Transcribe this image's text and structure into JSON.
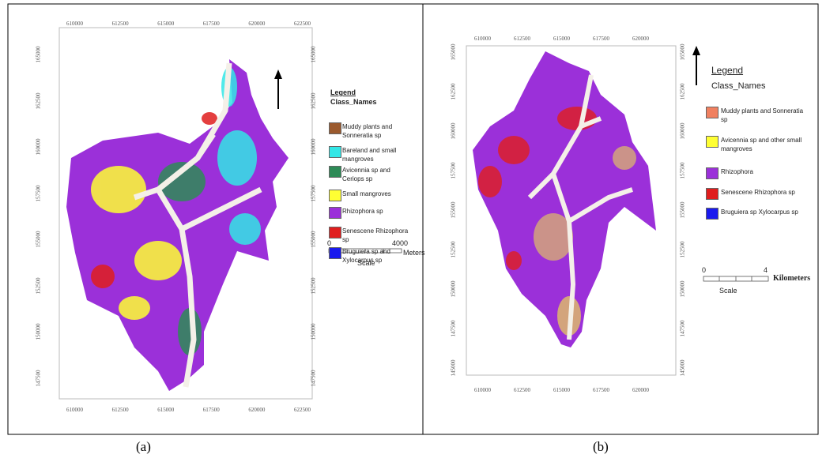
{
  "panels": [
    {
      "caption": "(a)",
      "legend_title": "Legend",
      "class_names": "Class_Names",
      "items": [
        {
          "label": "Muddy plants and Sonneratia sp",
          "color": "#9b5a2e"
        },
        {
          "label": "Bareland and small mangroves",
          "color": "#33e6e6"
        },
        {
          "label": "Avicennia sp and Ceriops sp",
          "color": "#2e8b57"
        },
        {
          "label": "Small mangroves",
          "color": "#ffff33"
        },
        {
          "label": "Rhizophora sp",
          "color": "#9b30d9"
        },
        {
          "label": "Senescene Rhizophora sp",
          "color": "#e01e1e"
        },
        {
          "label": "Bruguiera sp and Xylocarpus sp",
          "color": "#1a1aee"
        }
      ],
      "x_labels": [
        "610000",
        "612500",
        "615000",
        "617500",
        "620000",
        "622500"
      ],
      "y_labels": [
        "165000",
        "162500",
        "160000",
        "157500",
        "155000",
        "152500",
        "150000",
        "147500"
      ],
      "scale_start": "0",
      "scale_end": "4000",
      "scale_unit": "Meters",
      "scale_title": "Scale"
    },
    {
      "caption": "(b)",
      "legend_title": "Legend",
      "class_names": "Class_Names",
      "items": [
        {
          "label": "Muddy plants and Sonneratia sp",
          "color": "#f08060"
        },
        {
          "label": "Avicennia sp and other small mangroves",
          "color": "#ffff33"
        },
        {
          "label": "Rhizophora",
          "color": "#9b30d9"
        },
        {
          "label": "Senescene Rhizophora sp",
          "color": "#e01e1e"
        },
        {
          "label": "Bruguiera sp Xylocarpus sp",
          "color": "#1a1aee"
        }
      ],
      "x_labels": [
        "610000",
        "612500",
        "615000",
        "617500",
        "620000"
      ],
      "y_labels": [
        "165000",
        "162500",
        "160000",
        "157500",
        "155000",
        "152500",
        "150000",
        "147500",
        "145000"
      ],
      "scale_start": "0",
      "scale_end": "4",
      "scale_unit": "Kilometers",
      "scale_title": "Scale"
    }
  ]
}
